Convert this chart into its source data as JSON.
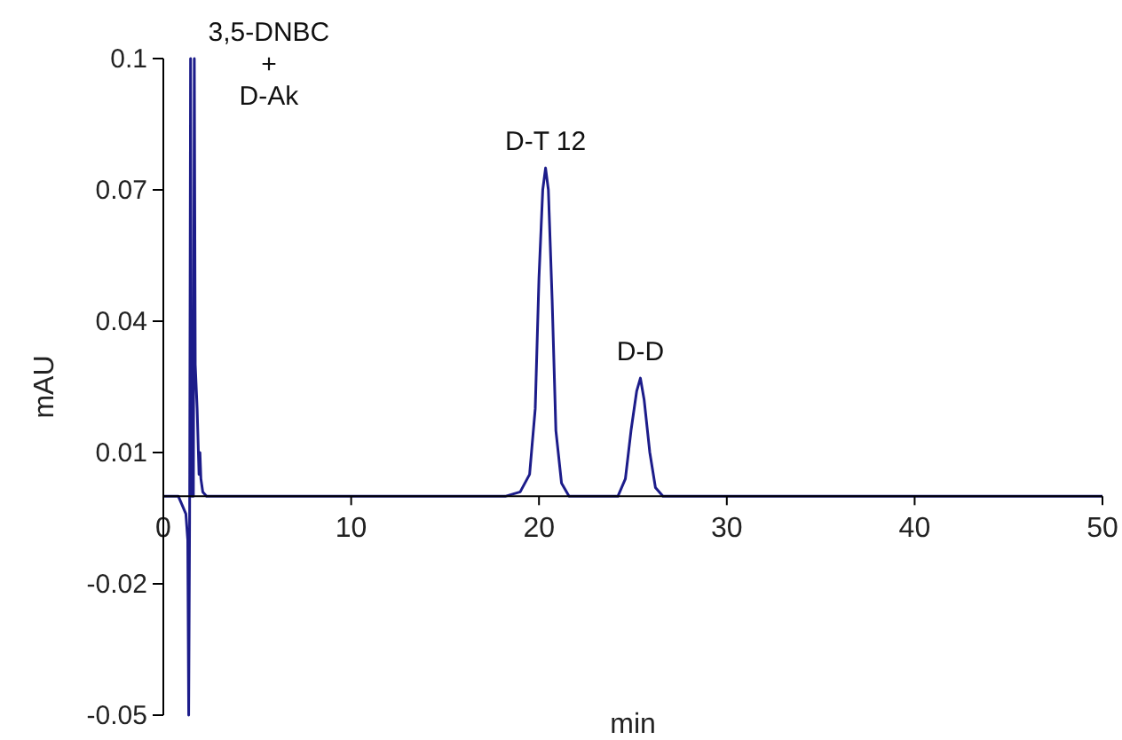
{
  "chart_data": {
    "type": "line",
    "xlabel": "min",
    "ylabel": "mAU",
    "xlim": [
      0,
      50
    ],
    "xticks": [
      0,
      10,
      20,
      30,
      40,
      50
    ],
    "ylim": [
      -0.05,
      0.1
    ],
    "yticks": [
      -0.05,
      -0.02,
      0.01,
      0.04,
      0.07,
      0.1
    ],
    "grid": false,
    "marker": "none",
    "line_style": "solid",
    "series": [
      {
        "color": "#1c1c8a",
        "x": [
          0,
          0.8,
          1.0,
          1.2,
          1.3,
          1.35,
          1.4,
          1.45,
          1.5,
          1.6,
          1.65,
          1.7,
          1.8,
          1.9,
          1.95,
          2.0,
          2.1,
          2.3,
          17.5,
          18.2,
          19.0,
          19.5,
          19.8,
          20.0,
          20.2,
          20.35,
          20.5,
          20.7,
          20.9,
          21.2,
          21.6,
          24.2,
          24.6,
          24.9,
          25.2,
          25.4,
          25.6,
          25.9,
          26.2,
          26.6,
          50
        ],
        "values": [
          0,
          0,
          -0.002,
          -0.004,
          -0.01,
          -0.05,
          -0.005,
          0.1,
          0.0,
          0.0,
          0.1,
          0.03,
          0.02,
          0.005,
          0.01,
          0.004,
          0.001,
          0,
          0,
          0,
          0.001,
          0.005,
          0.02,
          0.05,
          0.07,
          0.075,
          0.07,
          0.045,
          0.015,
          0.003,
          0,
          0,
          0.004,
          0.015,
          0.024,
          0.027,
          0.022,
          0.01,
          0.002,
          0,
          0
        ]
      }
    ],
    "annotations": [
      {
        "text": "3,5-DNBC\n+\nD-Ak",
        "x": 1.65,
        "y": 0.1
      },
      {
        "text": "D-T 12",
        "x": 20.35,
        "y": 0.075
      },
      {
        "text": "D-D",
        "x": 25.4,
        "y": 0.027
      }
    ]
  }
}
